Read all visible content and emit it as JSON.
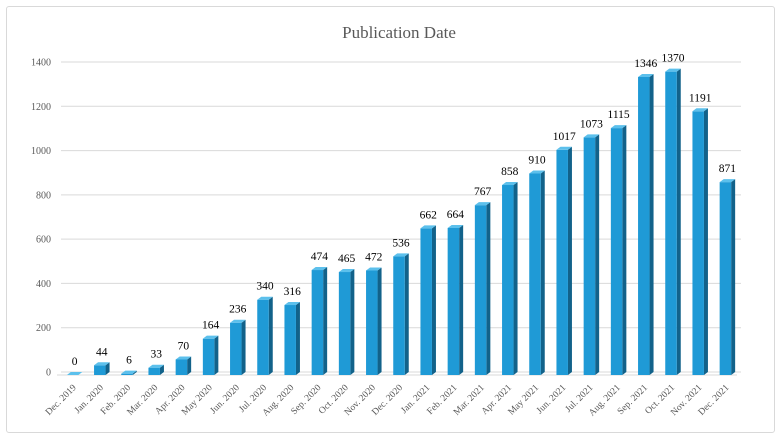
{
  "colors": {
    "bar_front": "#1f9ad6",
    "bar_side": "#12628a",
    "bar_top": "#5cc0ec",
    "gridline": "#d9d9d9"
  },
  "chart_data": {
    "type": "bar",
    "title": "Publication Date",
    "xlabel": "",
    "ylabel": "",
    "ylim": [
      0,
      1400
    ],
    "yticks": [
      0,
      200,
      400,
      600,
      800,
      1000,
      1200,
      1400
    ],
    "grid": true,
    "style": "3d-column",
    "categories": [
      "Dec. 2019",
      "Jan. 2020",
      "Feb. 2020",
      "Mar. 2020",
      "Apr. 2020",
      "May 2020",
      "Jun. 2020",
      "Jul. 2020",
      "Aug. 2020",
      "Sep. 2020",
      "Oct. 2020",
      "Nov. 2020",
      "Dec. 2020",
      "Jan. 2021",
      "Feb. 2021",
      "Mar. 2021",
      "Apr. 2021",
      "May 2021",
      "Jun. 2021",
      "Jul. 2021",
      "Aug. 2021",
      "Sep. 2021",
      "Oct. 2021",
      "Nov. 2021",
      "Dec. 2021"
    ],
    "values": [
      0,
      44,
      6,
      33,
      70,
      164,
      236,
      340,
      316,
      474,
      465,
      472,
      536,
      662,
      664,
      767,
      858,
      910,
      1017,
      1073,
      1115,
      1346,
      1370,
      1191,
      871
    ]
  }
}
